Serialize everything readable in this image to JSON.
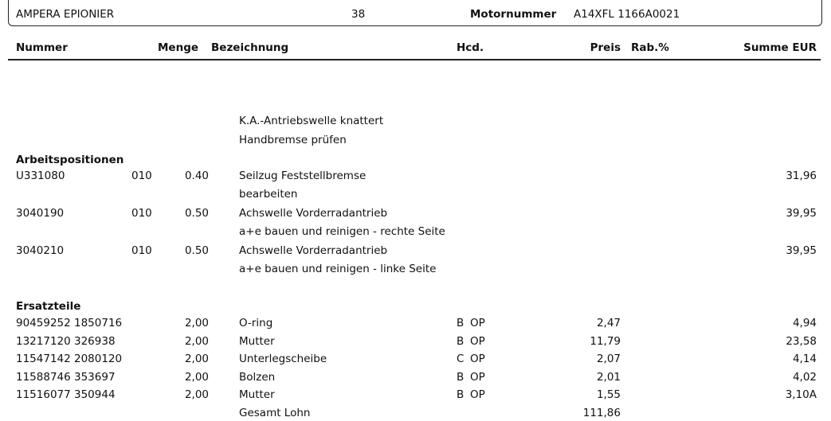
{
  "header": {
    "model": "AMPERA EPIONIER",
    "code": "38",
    "motor_label": "Motornummer",
    "motor_value": "A14XFL 1166A0021"
  },
  "columns": {
    "nummer": "Nummer",
    "menge": "Menge",
    "bezeichnung": "Bezeichnung",
    "hcd": "Hcd.",
    "preis": "Preis",
    "rabatt": "Rab.%",
    "summe": "Summe EUR"
  },
  "complaints": [
    "K.A.-Antriebswelle knattert",
    "Handbremse prüfen"
  ],
  "labor": {
    "title": "Arbeitspositionen",
    "items": [
      {
        "nummer": "U331080",
        "code": "010",
        "menge": "0.40",
        "bezeichnung": "Seilzug Feststellbremse",
        "detail": "bearbeiten",
        "summe": "31,96"
      },
      {
        "nummer": "3040190",
        "code": "010",
        "menge": "0.50",
        "bezeichnung": "Achswelle Vorderradantrieb",
        "detail": "a+e bauen und reinigen - rechte Seite",
        "summe": "39,95"
      },
      {
        "nummer": "3040210",
        "code": "010",
        "menge": "0.50",
        "bezeichnung": "Achswelle Vorderradantrieb",
        "detail": "a+e bauen und reinigen - linke Seite",
        "summe": "39,95"
      }
    ]
  },
  "parts": {
    "title": "Ersatzteile",
    "items": [
      {
        "nummer": "90459252 1850716",
        "menge": "2,00",
        "bezeichnung": "O-ring",
        "hcd": "B",
        "hcd2": "OP",
        "preis": "2,47",
        "summe": "4,94"
      },
      {
        "nummer": "13217120 326938",
        "menge": "2,00",
        "bezeichnung": "Mutter",
        "hcd": "B",
        "hcd2": "OP",
        "preis": "11,79",
        "summe": "23,58"
      },
      {
        "nummer": "11547142 2080120",
        "menge": "2,00",
        "bezeichnung": "Unterlegscheibe",
        "hcd": "C",
        "hcd2": "OP",
        "preis": "2,07",
        "summe": "4,14"
      },
      {
        "nummer": "11588746 353697",
        "menge": "2,00",
        "bezeichnung": "Bolzen",
        "hcd": "B",
        "hcd2": "OP",
        "preis": "2,01",
        "summe": "4,02"
      },
      {
        "nummer": "11516077 350944",
        "menge": "2,00",
        "bezeichnung": "Mutter",
        "hcd": "B",
        "hcd2": "OP",
        "preis": "1,55",
        "summe": "3,10A"
      }
    ]
  },
  "total": {
    "label": "Gesamt Lohn",
    "value": "111,86"
  }
}
